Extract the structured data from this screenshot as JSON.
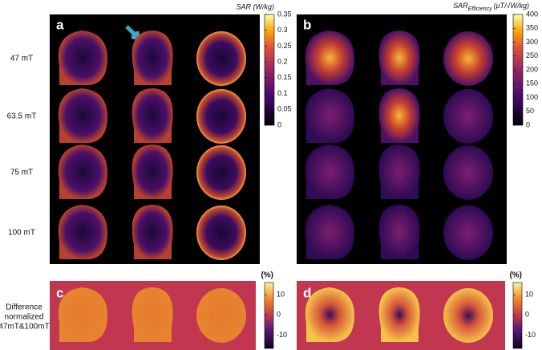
{
  "row_labels": [
    "47 mT",
    "63.5 mT",
    "75 mT",
    "100 mT"
  ],
  "difference_label": [
    "Difference",
    "normalized",
    "47mT&100mT"
  ],
  "panels": [
    {
      "label": "a"
    },
    {
      "label": "b"
    },
    {
      "label": "c"
    },
    {
      "label": "d"
    }
  ],
  "colorbars": [
    {
      "title": "SAR (W/kg)",
      "lim": [
        0,
        0.35
      ],
      "ticks": [
        0,
        0.05,
        0.1,
        0.15,
        0.2,
        0.25,
        0.3,
        0.35
      ]
    },
    {
      "title": {
        "base": "SAR",
        "sub": "Efficiency",
        "unit": "(μT/√W/kg)"
      },
      "lim": [
        0,
        400
      ],
      "ticks": [
        0,
        50,
        100,
        150,
        200,
        250,
        300,
        350,
        400
      ]
    },
    {
      "title": "(%)",
      "lim": [
        -16.5,
        16
      ],
      "ticks": [
        -10,
        0,
        10
      ]
    },
    {
      "title": "(%)",
      "lim": [
        -16.5,
        16
      ],
      "ticks": [
        -10,
        0,
        10
      ]
    }
  ]
}
